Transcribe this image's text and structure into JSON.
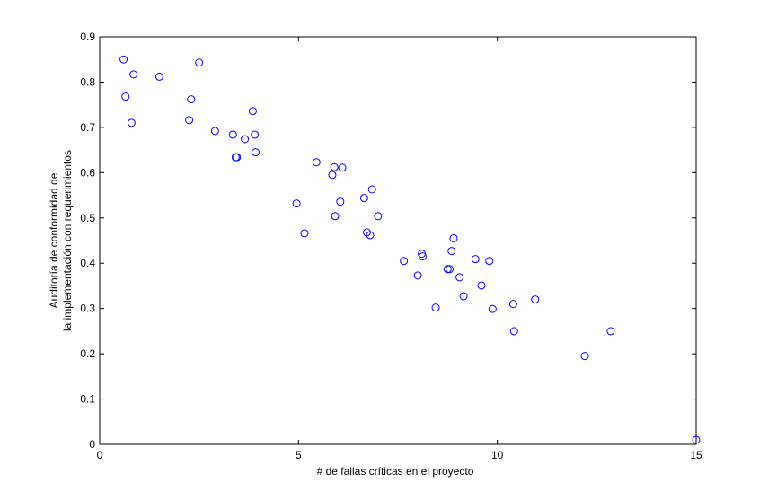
{
  "chart_data": {
    "type": "scatter",
    "title": "",
    "xlabel": "# de fallas críticas en el proyecto",
    "ylabel_line1": "Auditoría de conformidad de",
    "ylabel_line2": "la implementación con requerimientos",
    "xlim": [
      0,
      15
    ],
    "ylim": [
      0,
      0.9
    ],
    "x_ticks": [
      "0",
      "5",
      "10",
      "15"
    ],
    "y_ticks": [
      "0",
      "0.1",
      "0.2",
      "0.3",
      "0.4",
      "0.5",
      "0.6",
      "0.7",
      "0.8",
      "0.9"
    ],
    "grid": false,
    "marker": "circle-open",
    "marker_color": "#0000ff",
    "points": [
      {
        "x": 0.6,
        "y": 0.85
      },
      {
        "x": 0.65,
        "y": 0.768
      },
      {
        "x": 0.85,
        "y": 0.817
      },
      {
        "x": 0.8,
        "y": 0.71
      },
      {
        "x": 1.5,
        "y": 0.812
      },
      {
        "x": 2.5,
        "y": 0.843
      },
      {
        "x": 2.3,
        "y": 0.762
      },
      {
        "x": 2.25,
        "y": 0.716
      },
      {
        "x": 2.9,
        "y": 0.692
      },
      {
        "x": 3.35,
        "y": 0.684
      },
      {
        "x": 3.42,
        "y": 0.634
      },
      {
        "x": 3.45,
        "y": 0.634
      },
      {
        "x": 3.65,
        "y": 0.674
      },
      {
        "x": 3.85,
        "y": 0.736
      },
      {
        "x": 3.9,
        "y": 0.684
      },
      {
        "x": 3.92,
        "y": 0.645
      },
      {
        "x": 4.95,
        "y": 0.532
      },
      {
        "x": 5.15,
        "y": 0.466
      },
      {
        "x": 5.45,
        "y": 0.623
      },
      {
        "x": 5.9,
        "y": 0.612
      },
      {
        "x": 5.85,
        "y": 0.595
      },
      {
        "x": 6.1,
        "y": 0.611
      },
      {
        "x": 6.05,
        "y": 0.536
      },
      {
        "x": 5.92,
        "y": 0.504
      },
      {
        "x": 6.65,
        "y": 0.544
      },
      {
        "x": 6.85,
        "y": 0.563
      },
      {
        "x": 7.0,
        "y": 0.504
      },
      {
        "x": 6.72,
        "y": 0.468
      },
      {
        "x": 6.8,
        "y": 0.462
      },
      {
        "x": 7.65,
        "y": 0.405
      },
      {
        "x": 8.0,
        "y": 0.373
      },
      {
        "x": 8.1,
        "y": 0.421
      },
      {
        "x": 8.12,
        "y": 0.415
      },
      {
        "x": 8.45,
        "y": 0.302
      },
      {
        "x": 8.75,
        "y": 0.387
      },
      {
        "x": 8.8,
        "y": 0.387
      },
      {
        "x": 8.85,
        "y": 0.427
      },
      {
        "x": 8.9,
        "y": 0.455
      },
      {
        "x": 9.05,
        "y": 0.369
      },
      {
        "x": 9.15,
        "y": 0.327
      },
      {
        "x": 9.45,
        "y": 0.409
      },
      {
        "x": 9.6,
        "y": 0.351
      },
      {
        "x": 9.8,
        "y": 0.405
      },
      {
        "x": 9.88,
        "y": 0.299
      },
      {
        "x": 10.4,
        "y": 0.31
      },
      {
        "x": 10.42,
        "y": 0.25
      },
      {
        "x": 10.95,
        "y": 0.32
      },
      {
        "x": 12.2,
        "y": 0.195
      },
      {
        "x": 12.85,
        "y": 0.25
      },
      {
        "x": 15.0,
        "y": 0.01
      }
    ]
  }
}
